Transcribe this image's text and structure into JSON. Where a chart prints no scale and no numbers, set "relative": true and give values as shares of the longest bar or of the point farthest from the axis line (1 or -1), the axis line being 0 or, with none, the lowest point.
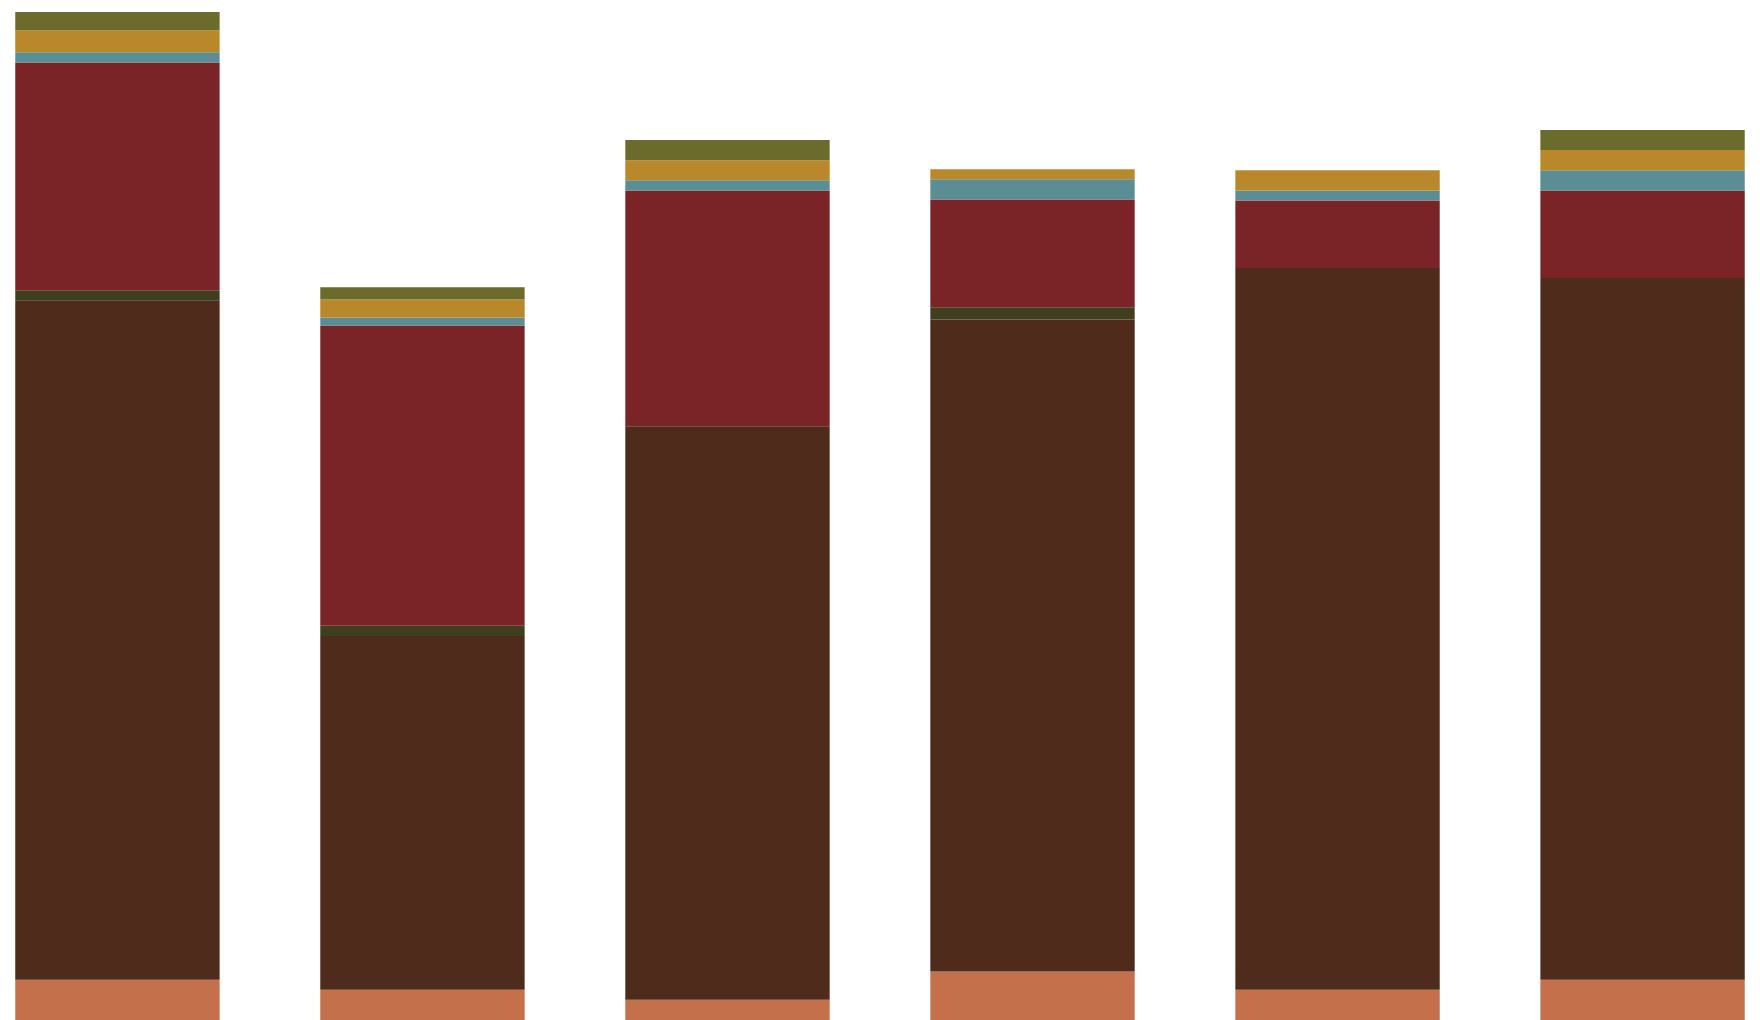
{
  "chart_data": {
    "type": "bar",
    "stacked": true,
    "relative": true,
    "categories": [
      null,
      null,
      null,
      null,
      null,
      null
    ],
    "series": [
      {
        "color": "#c4704a",
        "values": [
          0.04,
          0.03,
          0.02,
          0.048,
          0.03,
          0.04
        ]
      },
      {
        "color": "#4e2b1b",
        "values": [
          0.674,
          0.351,
          0.569,
          0.647,
          0.716,
          0.696
        ]
      },
      {
        "color": "#3f3f1f",
        "values": [
          0.01,
          0.01,
          null,
          0.012,
          null,
          null
        ]
      },
      {
        "color": "#7a2427",
        "values": [
          0.226,
          0.298,
          0.234,
          0.107,
          0.067,
          0.087
        ]
      },
      {
        "color": "#5a8e94",
        "values": [
          0.01,
          0.008,
          0.01,
          0.02,
          0.01,
          0.02
        ]
      },
      {
        "color": "#b8882a",
        "values": [
          0.022,
          0.018,
          0.02,
          0.01,
          0.02,
          0.02
        ]
      },
      {
        "color": "#6b6b2b",
        "values": [
          0.018,
          0.012,
          0.02,
          null,
          null,
          0.02
        ]
      }
    ]
  }
}
